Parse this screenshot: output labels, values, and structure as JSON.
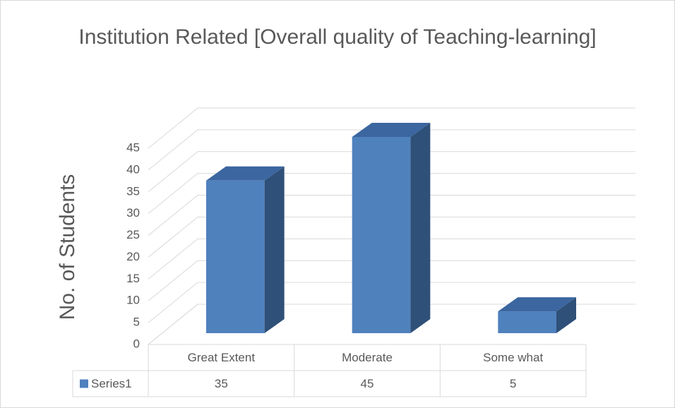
{
  "chart_data": {
    "type": "bar3d",
    "title": "Institution Related [Overall quality of Teaching-learning]",
    "y_axis_label": "No. of Students",
    "categories": [
      "Great Extent",
      "Moderate",
      "Some what"
    ],
    "series": [
      {
        "name": "Series1",
        "color": "#4f81bd",
        "values": [
          35,
          45,
          5
        ]
      }
    ],
    "ylim": [
      0,
      45
    ],
    "yticks": [
      0,
      5,
      10,
      15,
      20,
      25,
      30,
      35,
      40,
      45
    ],
    "grid": true,
    "data_table": true
  }
}
